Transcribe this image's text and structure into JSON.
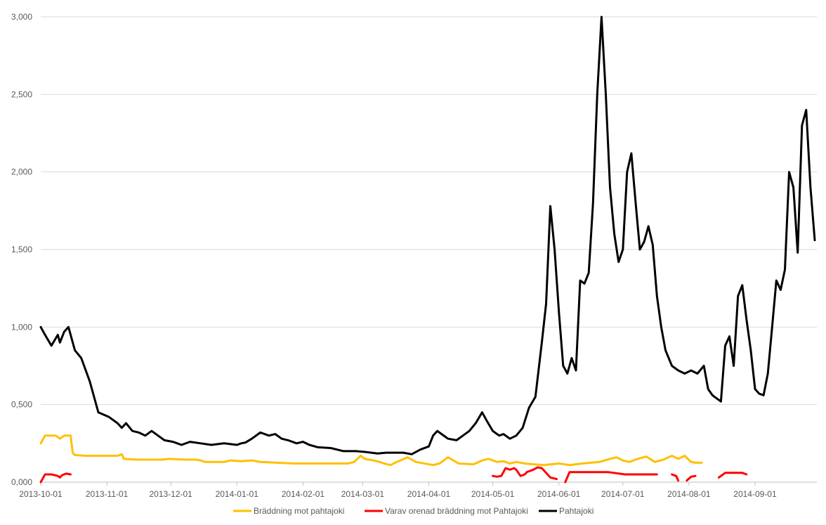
{
  "chart_data": {
    "type": "line",
    "title": "",
    "xlabel": "",
    "ylabel": "",
    "x_range": [
      "2013-10-01",
      "2014-09-30"
    ],
    "ylim": [
      0,
      3000
    ],
    "grid": true,
    "legend_position": "bottom",
    "y_ticks": [
      "0,000",
      "0,500",
      "1,000",
      "1,500",
      "2,000",
      "2,500",
      "3,000"
    ],
    "x_ticks": [
      {
        "date": "2013-10-01",
        "label": "2013-10-01"
      },
      {
        "date": "2013-11-01",
        "label": "2013-11-01"
      },
      {
        "date": "2013-12-01",
        "label": "2013-12-01"
      },
      {
        "date": "2014-01-01",
        "label": "2014-01-01"
      },
      {
        "date": "2014-02-01",
        "label": "2014-02-01"
      },
      {
        "date": "2014-03-01",
        "label": "2014-03-01"
      },
      {
        "date": "2014-04-01",
        "label": "2014-04-01"
      },
      {
        "date": "2014-05-01",
        "label": "2014-05-01"
      },
      {
        "date": "2014-06-01",
        "label": "2014-06-01"
      },
      {
        "date": "2014-07-01",
        "label": "2014-07-01"
      },
      {
        "date": "2014-08-01",
        "label": "2014-08-01"
      },
      {
        "date": "2014-09-01",
        "label": "2014-09-01"
      }
    ],
    "series": [
      {
        "name": "Bräddning mot pahtajoki",
        "color": "#FFC000",
        "segments": [
          [
            [
              "2013-10-01",
              250
            ],
            [
              "2013-10-03",
              300
            ],
            [
              "2013-10-08",
              300
            ],
            [
              "2013-10-10",
              280
            ],
            [
              "2013-10-12",
              300
            ],
            [
              "2013-10-15",
              300
            ],
            [
              "2013-10-16",
              190
            ],
            [
              "2013-10-17",
              175
            ],
            [
              "2013-10-22",
              170
            ],
            [
              "2013-11-06",
              170
            ],
            [
              "2013-11-08",
              180
            ],
            [
              "2013-11-09",
              150
            ],
            [
              "2013-11-15",
              145
            ],
            [
              "2013-11-27",
              145
            ],
            [
              "2013-11-30",
              150
            ],
            [
              "2013-12-08",
              145
            ],
            [
              "2013-12-13",
              145
            ],
            [
              "2013-12-15",
              140
            ],
            [
              "2013-12-17",
              130
            ],
            [
              "2013-12-26",
              130
            ],
            [
              "2013-12-29",
              140
            ],
            [
              "2014-01-03",
              135
            ],
            [
              "2014-01-08",
              140
            ],
            [
              "2014-01-12",
              130
            ],
            [
              "2014-01-28",
              120
            ],
            [
              "2014-02-22",
              120
            ],
            [
              "2014-02-25",
              130
            ],
            [
              "2014-02-28",
              170
            ],
            [
              "2014-03-02",
              150
            ],
            [
              "2014-03-06",
              140
            ],
            [
              "2014-03-09",
              130
            ],
            [
              "2014-03-11",
              120
            ],
            [
              "2014-03-14",
              110
            ],
            [
              "2014-03-17",
              130
            ],
            [
              "2014-03-22",
              160
            ],
            [
              "2014-03-26",
              130
            ],
            [
              "2014-04-03",
              110
            ],
            [
              "2014-04-06",
              120
            ],
            [
              "2014-04-10",
              160
            ],
            [
              "2014-04-15",
              120
            ],
            [
              "2014-04-22",
              115
            ],
            [
              "2014-04-26",
              140
            ],
            [
              "2014-04-29",
              150
            ],
            [
              "2014-05-03",
              130
            ],
            [
              "2014-05-06",
              135
            ],
            [
              "2014-05-09",
              120
            ],
            [
              "2014-05-12",
              130
            ],
            [
              "2014-05-16",
              120
            ],
            [
              "2014-05-20",
              115
            ],
            [
              "2014-05-25",
              110
            ],
            [
              "2014-06-01",
              120
            ],
            [
              "2014-06-06",
              110
            ],
            [
              "2014-06-12",
              120
            ],
            [
              "2014-06-20",
              130
            ],
            [
              "2014-06-25",
              150
            ],
            [
              "2014-06-28",
              160
            ],
            [
              "2014-07-01",
              140
            ],
            [
              "2014-07-04",
              130
            ],
            [
              "2014-07-08",
              150
            ],
            [
              "2014-07-12",
              165
            ],
            [
              "2014-07-16",
              130
            ],
            [
              "2014-07-20",
              145
            ],
            [
              "2014-07-24",
              170
            ],
            [
              "2014-07-27",
              150
            ],
            [
              "2014-07-30",
              170
            ],
            [
              "2014-08-02",
              130
            ],
            [
              "2014-08-04",
              125
            ],
            [
              "2014-08-07",
              125
            ]
          ]
        ]
      },
      {
        "name": "Varav orenad bräddning mot Pahtajoki",
        "color": "#FF0000",
        "segments": [
          [
            [
              "2013-10-01",
              0
            ],
            [
              "2013-10-03",
              50
            ],
            [
              "2013-10-06",
              50
            ],
            [
              "2013-10-09",
              40
            ],
            [
              "2013-10-10",
              30
            ],
            [
              "2013-10-11",
              45
            ],
            [
              "2013-10-13",
              55
            ],
            [
              "2013-10-15",
              50
            ]
          ],
          [
            [
              "2014-05-01",
              40
            ],
            [
              "2014-05-03",
              35
            ],
            [
              "2014-05-05",
              40
            ],
            [
              "2014-05-07",
              90
            ],
            [
              "2014-05-09",
              80
            ],
            [
              "2014-05-11",
              90
            ],
            [
              "2014-05-12",
              80
            ],
            [
              "2014-05-14",
              40
            ],
            [
              "2014-05-16",
              50
            ],
            [
              "2014-05-17",
              65
            ],
            [
              "2014-05-20",
              80
            ],
            [
              "2014-05-22",
              95
            ],
            [
              "2014-05-24",
              90
            ],
            [
              "2014-05-26",
              60
            ],
            [
              "2014-05-28",
              30
            ],
            [
              "2014-05-31",
              20
            ]
          ],
          [
            [
              "2014-06-04",
              0
            ],
            [
              "2014-06-06",
              65
            ],
            [
              "2014-06-14",
              65
            ],
            [
              "2014-06-24",
              65
            ],
            [
              "2014-07-02",
              50
            ],
            [
              "2014-07-17",
              50
            ]
          ],
          [
            [
              "2014-07-24",
              50
            ],
            [
              "2014-07-26",
              40
            ],
            [
              "2014-07-27",
              10
            ]
          ],
          [
            [
              "2014-07-31",
              10
            ],
            [
              "2014-08-02",
              35
            ],
            [
              "2014-08-04",
              40
            ]
          ],
          [
            [
              "2014-08-15",
              30
            ],
            [
              "2014-08-18",
              60
            ],
            [
              "2014-08-22",
              60
            ],
            [
              "2014-08-26",
              60
            ],
            [
              "2014-08-28",
              50
            ]
          ]
        ]
      },
      {
        "name": "Pahtajoki",
        "color": "#000000",
        "segments": [
          [
            [
              "2013-10-01",
              1000
            ],
            [
              "2013-10-03",
              950
            ],
            [
              "2013-10-06",
              880
            ],
            [
              "2013-10-09",
              950
            ],
            [
              "2013-10-10",
              900
            ],
            [
              "2013-10-12",
              970
            ],
            [
              "2013-10-14",
              1000
            ],
            [
              "2013-10-17",
              850
            ],
            [
              "2013-10-20",
              800
            ],
            [
              "2013-10-24",
              650
            ],
            [
              "2013-10-28",
              450
            ],
            [
              "2013-11-02",
              420
            ],
            [
              "2013-11-06",
              380
            ],
            [
              "2013-11-08",
              350
            ],
            [
              "2013-11-10",
              380
            ],
            [
              "2013-11-13",
              330
            ],
            [
              "2013-11-16",
              320
            ],
            [
              "2013-11-19",
              300
            ],
            [
              "2013-11-22",
              330
            ],
            [
              "2013-11-25",
              300
            ],
            [
              "2013-11-28",
              270
            ],
            [
              "2013-12-02",
              260
            ],
            [
              "2013-12-06",
              240
            ],
            [
              "2013-12-10",
              260
            ],
            [
              "2013-12-15",
              250
            ],
            [
              "2013-12-20",
              240
            ],
            [
              "2013-12-26",
              250
            ],
            [
              "2014-01-01",
              240
            ],
            [
              "2014-01-03",
              250
            ],
            [
              "2014-01-05",
              255
            ],
            [
              "2014-01-08",
              280
            ],
            [
              "2014-01-12",
              320
            ],
            [
              "2014-01-16",
              300
            ],
            [
              "2014-01-19",
              310
            ],
            [
              "2014-01-22",
              280
            ],
            [
              "2014-01-25",
              270
            ],
            [
              "2014-01-29",
              250
            ],
            [
              "2014-02-01",
              260
            ],
            [
              "2014-02-04",
              240
            ],
            [
              "2014-02-08",
              225
            ],
            [
              "2014-02-14",
              220
            ],
            [
              "2014-02-20",
              200
            ],
            [
              "2014-02-26",
              200
            ],
            [
              "2014-03-02",
              195
            ],
            [
              "2014-03-05",
              190
            ],
            [
              "2014-03-08",
              185
            ],
            [
              "2014-03-12",
              190
            ],
            [
              "2014-03-16",
              190
            ],
            [
              "2014-03-20",
              190
            ],
            [
              "2014-03-24",
              180
            ],
            [
              "2014-03-28",
              210
            ],
            [
              "2014-04-01",
              230
            ],
            [
              "2014-04-03",
              300
            ],
            [
              "2014-04-05",
              330
            ],
            [
              "2014-04-07",
              310
            ],
            [
              "2014-04-10",
              280
            ],
            [
              "2014-04-14",
              270
            ],
            [
              "2014-04-17",
              300
            ],
            [
              "2014-04-20",
              330
            ],
            [
              "2014-04-23",
              380
            ],
            [
              "2014-04-26",
              450
            ],
            [
              "2014-04-28",
              400
            ],
            [
              "2014-05-01",
              330
            ],
            [
              "2014-05-04",
              300
            ],
            [
              "2014-05-06",
              310
            ],
            [
              "2014-05-09",
              280
            ],
            [
              "2014-05-12",
              300
            ],
            [
              "2014-05-15",
              350
            ],
            [
              "2014-05-18",
              480
            ],
            [
              "2014-05-21",
              550
            ],
            [
              "2014-05-24",
              900
            ],
            [
              "2014-05-26",
              1150
            ],
            [
              "2014-05-28",
              1780
            ],
            [
              "2014-05-30",
              1500
            ],
            [
              "2014-06-01",
              1100
            ],
            [
              "2014-06-03",
              750
            ],
            [
              "2014-06-05",
              700
            ],
            [
              "2014-06-07",
              800
            ],
            [
              "2014-06-09",
              720
            ],
            [
              "2014-06-11",
              1300
            ],
            [
              "2014-06-13",
              1280
            ],
            [
              "2014-06-15",
              1350
            ],
            [
              "2014-06-17",
              1800
            ],
            [
              "2014-06-19",
              2500
            ],
            [
              "2014-06-21",
              3000
            ],
            [
              "2014-06-23",
              2500
            ],
            [
              "2014-06-25",
              1900
            ],
            [
              "2014-06-27",
              1600
            ],
            [
              "2014-06-29",
              1420
            ],
            [
              "2014-07-01",
              1500
            ],
            [
              "2014-07-03",
              2000
            ],
            [
              "2014-07-05",
              2120
            ],
            [
              "2014-07-07",
              1800
            ],
            [
              "2014-07-09",
              1500
            ],
            [
              "2014-07-11",
              1550
            ],
            [
              "2014-07-13",
              1650
            ],
            [
              "2014-07-15",
              1530
            ],
            [
              "2014-07-17",
              1200
            ],
            [
              "2014-07-19",
              1000
            ],
            [
              "2014-07-21",
              850
            ],
            [
              "2014-07-24",
              750
            ],
            [
              "2014-07-27",
              720
            ],
            [
              "2014-07-30",
              700
            ],
            [
              "2014-08-02",
              720
            ],
            [
              "2014-08-05",
              700
            ],
            [
              "2014-08-08",
              750
            ],
            [
              "2014-08-10",
              600
            ],
            [
              "2014-08-12",
              560
            ],
            [
              "2014-08-14",
              540
            ],
            [
              "2014-08-16",
              520
            ],
            [
              "2014-08-18",
              880
            ],
            [
              "2014-08-20",
              940
            ],
            [
              "2014-08-22",
              750
            ],
            [
              "2014-08-24",
              1200
            ],
            [
              "2014-08-26",
              1270
            ],
            [
              "2014-08-28",
              1050
            ],
            [
              "2014-08-30",
              850
            ],
            [
              "2014-09-01",
              600
            ],
            [
              "2014-09-03",
              570
            ],
            [
              "2014-09-05",
              560
            ],
            [
              "2014-09-07",
              700
            ],
            [
              "2014-09-09",
              1000
            ],
            [
              "2014-09-11",
              1300
            ],
            [
              "2014-09-13",
              1240
            ],
            [
              "2014-09-15",
              1370
            ],
            [
              "2014-09-17",
              2000
            ],
            [
              "2014-09-19",
              1900
            ],
            [
              "2014-09-21",
              1480
            ],
            [
              "2014-09-23",
              2300
            ],
            [
              "2014-09-25",
              2400
            ],
            [
              "2014-09-27",
              1900
            ],
            [
              "2014-09-29",
              1560
            ]
          ]
        ]
      }
    ]
  }
}
